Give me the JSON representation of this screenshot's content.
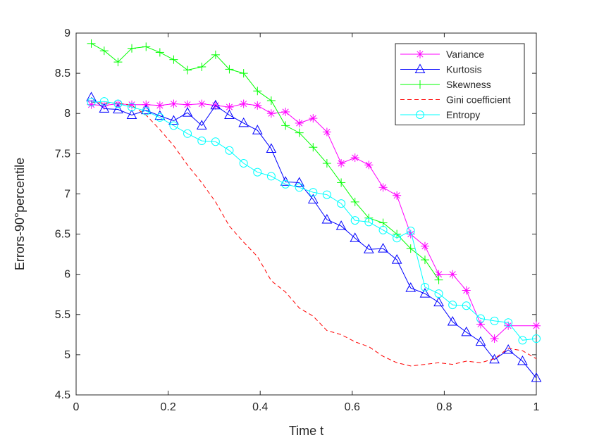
{
  "chart_data": {
    "type": "line",
    "xlabel": "Time t",
    "ylabel": "Errors-90°percentile",
    "xlim": [
      0,
      1
    ],
    "ylim": [
      4.5,
      9
    ],
    "x_ticks": [
      "0",
      "0.2",
      "0.4",
      "0.6",
      "0.8",
      "1"
    ],
    "y_ticks": [
      "4.5",
      "5",
      "5.5",
      "6",
      "6.5",
      "7",
      "7.5",
      "8",
      "8.5",
      "9"
    ],
    "grid": false,
    "legend_position": "top-right",
    "series": [
      {
        "name": "Variance",
        "color": "#ff00ff",
        "line": "solid",
        "marker": "asterisk",
        "points": [
          [
            0.033,
            8.11
          ],
          [
            0.061,
            8.1
          ],
          [
            0.091,
            8.12
          ],
          [
            0.121,
            8.11
          ],
          [
            0.152,
            8.11
          ],
          [
            0.182,
            8.1
          ],
          [
            0.212,
            8.12
          ],
          [
            0.242,
            8.11
          ],
          [
            0.273,
            8.12
          ],
          [
            0.303,
            8.1
          ],
          [
            0.333,
            8.08
          ],
          [
            0.364,
            8.12
          ],
          [
            0.394,
            8.1
          ],
          [
            0.424,
            8.0
          ],
          [
            0.455,
            8.02
          ],
          [
            0.485,
            7.88
          ],
          [
            0.515,
            7.94
          ],
          [
            0.545,
            7.77
          ],
          [
            0.576,
            7.38
          ],
          [
            0.606,
            7.45
          ],
          [
            0.636,
            7.36
          ],
          [
            0.667,
            7.08
          ],
          [
            0.697,
            6.98
          ],
          [
            0.727,
            6.5
          ],
          [
            0.758,
            6.35
          ],
          [
            0.788,
            6.0
          ],
          [
            0.818,
            6.0
          ],
          [
            0.848,
            5.8
          ],
          [
            0.879,
            5.38
          ],
          [
            0.909,
            5.2
          ],
          [
            0.939,
            5.36
          ],
          [
            1.0,
            5.36
          ]
        ]
      },
      {
        "name": "Kurtosis",
        "color": "#0000ff",
        "line": "solid",
        "marker": "triangle",
        "points": [
          [
            0.033,
            8.2
          ],
          [
            0.061,
            8.06
          ],
          [
            0.091,
            8.05
          ],
          [
            0.121,
            7.98
          ],
          [
            0.152,
            8.04
          ],
          [
            0.182,
            7.97
          ],
          [
            0.212,
            7.91
          ],
          [
            0.242,
            8.01
          ],
          [
            0.273,
            7.85
          ],
          [
            0.303,
            8.1
          ],
          [
            0.333,
            7.98
          ],
          [
            0.364,
            7.88
          ],
          [
            0.394,
            7.79
          ],
          [
            0.424,
            7.56
          ],
          [
            0.455,
            7.15
          ],
          [
            0.485,
            7.14
          ],
          [
            0.515,
            6.93
          ],
          [
            0.545,
            6.68
          ],
          [
            0.576,
            6.6
          ],
          [
            0.606,
            6.45
          ],
          [
            0.636,
            6.31
          ],
          [
            0.667,
            6.32
          ],
          [
            0.697,
            6.18
          ],
          [
            0.727,
            5.83
          ],
          [
            0.758,
            5.76
          ],
          [
            0.788,
            5.65
          ],
          [
            0.818,
            5.41
          ],
          [
            0.848,
            5.28
          ],
          [
            0.879,
            5.16
          ],
          [
            0.909,
            4.94
          ],
          [
            0.939,
            5.06
          ],
          [
            0.97,
            4.92
          ],
          [
            1.0,
            4.71
          ]
        ]
      },
      {
        "name": "Skewness",
        "color": "#00ff00",
        "line": "solid",
        "marker": "plus",
        "points": [
          [
            0.033,
            8.87
          ],
          [
            0.061,
            8.78
          ],
          [
            0.091,
            8.64
          ],
          [
            0.121,
            8.81
          ],
          [
            0.152,
            8.83
          ],
          [
            0.182,
            8.76
          ],
          [
            0.212,
            8.67
          ],
          [
            0.242,
            8.54
          ],
          [
            0.273,
            8.58
          ],
          [
            0.303,
            8.73
          ],
          [
            0.333,
            8.55
          ],
          [
            0.364,
            8.5
          ],
          [
            0.394,
            8.28
          ],
          [
            0.424,
            8.16
          ],
          [
            0.455,
            7.85
          ],
          [
            0.485,
            7.76
          ],
          [
            0.515,
            7.58
          ],
          [
            0.545,
            7.38
          ],
          [
            0.576,
            7.14
          ],
          [
            0.606,
            6.9
          ],
          [
            0.636,
            6.7
          ],
          [
            0.667,
            6.64
          ],
          [
            0.697,
            6.5
          ],
          [
            0.727,
            6.32
          ],
          [
            0.758,
            6.18
          ],
          [
            0.788,
            5.93
          ]
        ]
      },
      {
        "name": "Gini coefficient",
        "color": "#ff0000",
        "line": "dashed",
        "marker": "none",
        "points": [
          [
            0.033,
            8.14
          ],
          [
            0.061,
            8.13
          ],
          [
            0.091,
            8.13
          ],
          [
            0.121,
            8.1
          ],
          [
            0.152,
            7.98
          ],
          [
            0.182,
            7.8
          ],
          [
            0.212,
            7.6
          ],
          [
            0.242,
            7.36
          ],
          [
            0.273,
            7.14
          ],
          [
            0.303,
            6.9
          ],
          [
            0.333,
            6.6
          ],
          [
            0.364,
            6.4
          ],
          [
            0.394,
            6.22
          ],
          [
            0.424,
            5.92
          ],
          [
            0.455,
            5.78
          ],
          [
            0.485,
            5.58
          ],
          [
            0.515,
            5.48
          ],
          [
            0.545,
            5.3
          ],
          [
            0.576,
            5.25
          ],
          [
            0.606,
            5.16
          ],
          [
            0.636,
            5.1
          ],
          [
            0.667,
            4.98
          ],
          [
            0.697,
            4.9
          ],
          [
            0.727,
            4.86
          ],
          [
            0.758,
            4.88
          ],
          [
            0.788,
            4.9
          ],
          [
            0.818,
            4.88
          ],
          [
            0.848,
            4.92
          ],
          [
            0.879,
            4.9
          ],
          [
            0.909,
            4.95
          ],
          [
            0.939,
            5.08
          ],
          [
            0.97,
            5.05
          ],
          [
            1.0,
            4.95
          ]
        ]
      },
      {
        "name": "Entropy",
        "color": "#00ffff",
        "line": "solid",
        "marker": "circle",
        "points": [
          [
            0.033,
            8.14
          ],
          [
            0.061,
            8.15
          ],
          [
            0.091,
            8.12
          ],
          [
            0.121,
            8.08
          ],
          [
            0.152,
            8.03
          ],
          [
            0.182,
            7.95
          ],
          [
            0.212,
            7.85
          ],
          [
            0.242,
            7.75
          ],
          [
            0.273,
            7.66
          ],
          [
            0.303,
            7.65
          ],
          [
            0.333,
            7.54
          ],
          [
            0.364,
            7.38
          ],
          [
            0.394,
            7.27
          ],
          [
            0.424,
            7.22
          ],
          [
            0.455,
            7.12
          ],
          [
            0.485,
            7.08
          ],
          [
            0.515,
            7.02
          ],
          [
            0.545,
            6.99
          ],
          [
            0.576,
            6.88
          ],
          [
            0.606,
            6.67
          ],
          [
            0.636,
            6.65
          ],
          [
            0.667,
            6.55
          ],
          [
            0.697,
            6.45
          ],
          [
            0.727,
            6.54
          ],
          [
            0.758,
            5.84
          ],
          [
            0.788,
            5.76
          ],
          [
            0.818,
            5.62
          ],
          [
            0.848,
            5.61
          ],
          [
            0.879,
            5.45
          ],
          [
            0.909,
            5.42
          ],
          [
            0.939,
            5.4
          ],
          [
            0.97,
            5.18
          ],
          [
            1.0,
            5.2
          ]
        ]
      }
    ]
  }
}
